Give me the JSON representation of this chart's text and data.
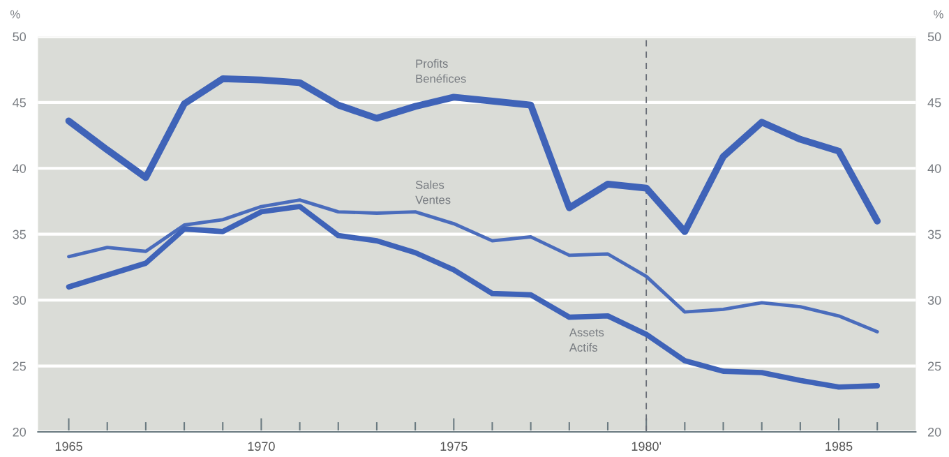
{
  "chart_data": {
    "type": "line",
    "x": [
      1965,
      1966,
      1967,
      1968,
      1969,
      1970,
      1971,
      1972,
      1973,
      1974,
      1975,
      1976,
      1977,
      1978,
      1979,
      1980,
      1981,
      1982,
      1983,
      1984,
      1985,
      1986
    ],
    "series": [
      {
        "name": "Profits\nBenéfices",
        "color": "#3f63b8",
        "values": [
          43.6,
          41.4,
          39.3,
          44.9,
          46.8,
          46.7,
          46.5,
          44.8,
          43.8,
          44.7,
          45.4,
          45.1,
          44.8,
          37.0,
          38.8,
          38.5,
          35.2,
          40.9,
          43.5,
          42.2,
          41.3,
          36.0
        ]
      },
      {
        "name": "Sales\nVentes",
        "color": "#4a6cbc",
        "values": [
          33.3,
          34.0,
          33.7,
          35.7,
          36.1,
          37.1,
          37.6,
          36.7,
          36.6,
          36.7,
          35.8,
          34.5,
          34.8,
          33.4,
          33.5,
          31.8,
          29.1,
          29.3,
          29.8,
          29.5,
          28.8,
          27.6
        ]
      },
      {
        "name": "Assets\nActifs",
        "color": "#3f63b8",
        "values": [
          31.0,
          31.9,
          32.8,
          35.4,
          35.2,
          36.7,
          37.1,
          34.9,
          34.5,
          33.6,
          32.3,
          30.5,
          30.4,
          28.7,
          28.8,
          27.4,
          25.4,
          24.6,
          24.5,
          23.9,
          23.4,
          23.5
        ]
      }
    ],
    "ylabel": "%",
    "y2label": "%",
    "xlim": [
      1964.2,
      1987
    ],
    "xticks": [
      1965,
      {
        "value": 1966,
        "label": null
      },
      {
        "value": 1967,
        "label": null
      },
      {
        "value": 1968,
        "label": null
      },
      {
        "value": 1969,
        "label": null
      },
      1970,
      {
        "value": 1971,
        "label": null
      },
      {
        "value": 1972,
        "label": null
      },
      {
        "value": 1973,
        "label": null
      },
      {
        "value": 1974,
        "label": null
      },
      1975,
      {
        "value": 1976,
        "label": null
      },
      {
        "value": 1977,
        "label": null
      },
      {
        "value": 1978,
        "label": null
      },
      {
        "value": 1979,
        "label": null
      },
      {
        "value": 1980,
        "label": "1980'"
      },
      {
        "value": 1981,
        "label": null
      },
      {
        "value": 1982,
        "label": null
      },
      {
        "value": 1983,
        "label": null
      },
      {
        "value": 1984,
        "label": null
      },
      1985,
      {
        "value": 1986,
        "label": null
      }
    ],
    "ylim": [
      20,
      50
    ],
    "yticks": [
      20,
      25,
      30,
      35,
      40,
      45,
      50
    ],
    "y2lim": [
      20,
      50
    ],
    "y2ticks": [
      20,
      25,
      30,
      35,
      40,
      45,
      50
    ],
    "ref_lines": [
      {
        "axis": "x",
        "value": 1980,
        "color": "#6a6f78",
        "line_style": "dashed"
      }
    ],
    "grid": "y",
    "legend": false,
    "marker": "none",
    "line_style": "solid"
  }
}
